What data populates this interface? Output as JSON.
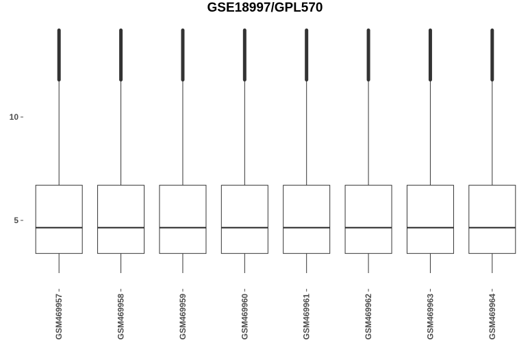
{
  "chart_data": {
    "type": "boxplot",
    "title": "GSE18997/GPL570",
    "xlabel": "",
    "ylabel": "",
    "ylim": [
      2.0,
      14.5
    ],
    "y_ticks": [
      5,
      10
    ],
    "y_tick_labels": [
      "5",
      "10"
    ],
    "grid": false,
    "categories": [
      "GSM469957",
      "GSM469958",
      "GSM469959",
      "GSM469960",
      "GSM469961",
      "GSM469962",
      "GSM469963",
      "GSM469964"
    ],
    "boxes": [
      {
        "lower_whisker": 2.45,
        "q1": 3.4,
        "median": 4.65,
        "q3": 6.7,
        "upper_whisker": 11.8,
        "outlier_max": 14.2
      },
      {
        "lower_whisker": 2.45,
        "q1": 3.4,
        "median": 4.65,
        "q3": 6.7,
        "upper_whisker": 11.8,
        "outlier_max": 14.2
      },
      {
        "lower_whisker": 2.45,
        "q1": 3.4,
        "median": 4.65,
        "q3": 6.7,
        "upper_whisker": 11.8,
        "outlier_max": 14.2
      },
      {
        "lower_whisker": 2.45,
        "q1": 3.4,
        "median": 4.65,
        "q3": 6.7,
        "upper_whisker": 11.8,
        "outlier_max": 14.2
      },
      {
        "lower_whisker": 2.45,
        "q1": 3.4,
        "median": 4.65,
        "q3": 6.7,
        "upper_whisker": 11.8,
        "outlier_max": 14.2
      },
      {
        "lower_whisker": 2.45,
        "q1": 3.4,
        "median": 4.65,
        "q3": 6.7,
        "upper_whisker": 11.8,
        "outlier_max": 14.2
      },
      {
        "lower_whisker": 2.45,
        "q1": 3.4,
        "median": 4.65,
        "q3": 6.7,
        "upper_whisker": 11.8,
        "outlier_max": 14.2
      },
      {
        "lower_whisker": 2.45,
        "q1": 3.4,
        "median": 4.65,
        "q3": 6.7,
        "upper_whisker": 11.8,
        "outlier_max": 14.2
      }
    ],
    "colors": {
      "box_fill": "#ffffff",
      "stroke": "#333333",
      "tick_text": "#4d4d4d"
    }
  }
}
